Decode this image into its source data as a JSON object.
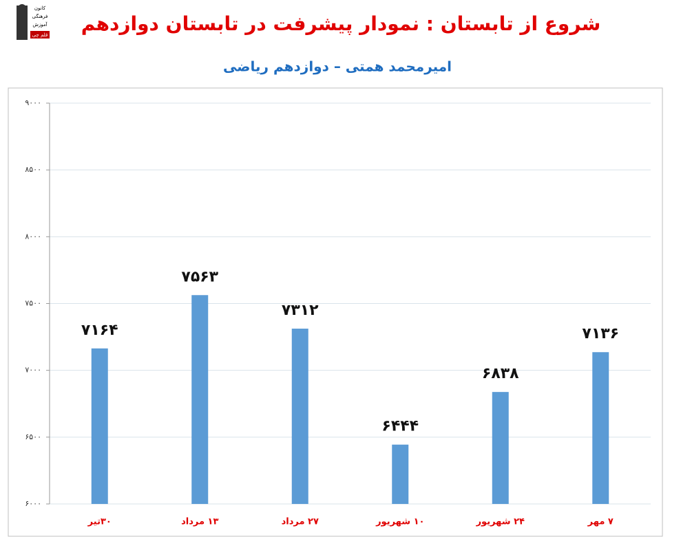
{
  "logo": [
    "کانون",
    "فرهنگی",
    "آموزش",
    "قلم چی"
  ],
  "chart_data": {
    "type": "bar",
    "title": "شروع از تابستان : نمودار پیشرفت در تابستان دوازدهم",
    "subtitle": "امیرمحمد همتی – دوازدهم ریاضی",
    "categories": [
      "۳۰تیر",
      "۱۳ مرداد",
      "۲۷ مرداد",
      "۱۰ شهریور",
      "۲۴ شهریور",
      "۷ مهر"
    ],
    "values": [
      7164,
      7563,
      7312,
      6444,
      6838,
      7136
    ],
    "value_labels": [
      "۷۱۶۴",
      "۷۵۶۳",
      "۷۳۱۲",
      "۶۴۴۴",
      "۶۸۳۸",
      "۷۱۳۶"
    ],
    "color": "#5b9bd5",
    "ylim": [
      6000,
      9000
    ],
    "yticks": [
      {
        "value": 6000,
        "label": "۶۰۰۰"
      },
      {
        "value": 6500,
        "label": "۶۵۰۰"
      },
      {
        "value": 7000,
        "label": "۷۰۰۰"
      },
      {
        "value": 7500,
        "label": "۷۵۰۰"
      },
      {
        "value": 8000,
        "label": "۸۰۰۰"
      },
      {
        "value": 8500,
        "label": "۸۵۰۰"
      },
      {
        "value": 9000,
        "label": "۹۰۰۰"
      }
    ],
    "grid": true
  }
}
